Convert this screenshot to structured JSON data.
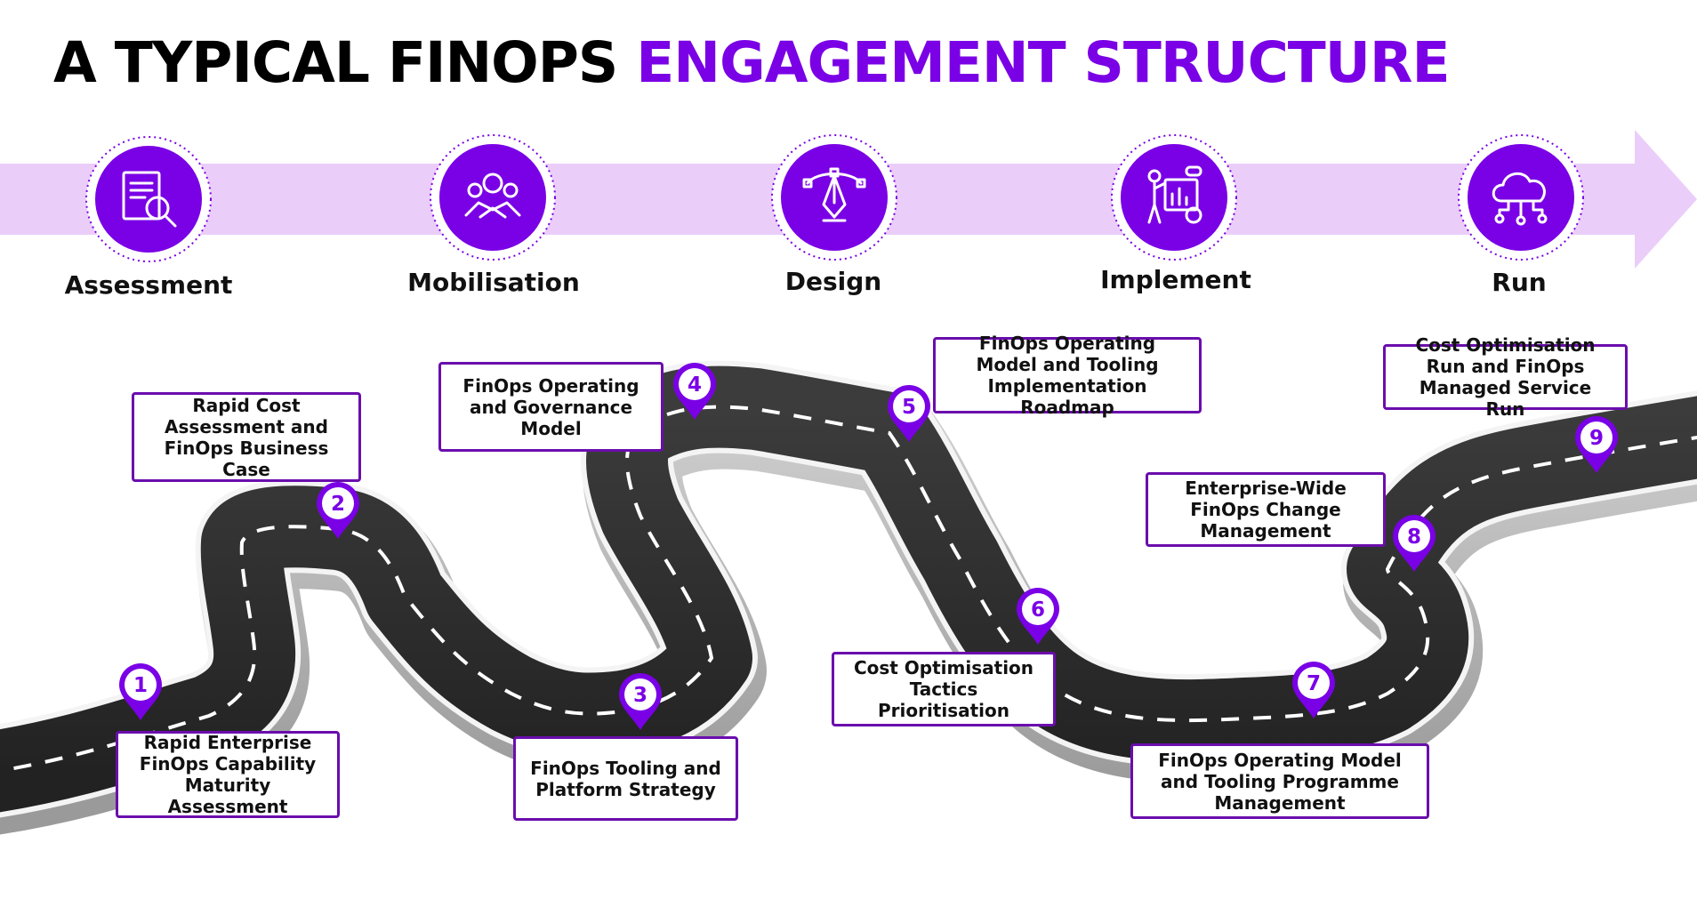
{
  "title": {
    "part1": "A TYPICAL FINOPS",
    "part2": "ENGAGEMENT STRUCTURE"
  },
  "colors": {
    "accent": "#7a00e6",
    "band": "#ebcdfa",
    "road": "#333333",
    "box_border": "#6a0dad"
  },
  "phases": [
    {
      "label": "Assessment",
      "icon": "document-search-icon"
    },
    {
      "label": "Mobilisation",
      "icon": "team-handshake-icon"
    },
    {
      "label": "Design",
      "icon": "pen-tool-icon"
    },
    {
      "label": "Implement",
      "icon": "person-dashboard-icon"
    },
    {
      "label": "Run",
      "icon": "cloud-network-icon"
    }
  ],
  "steps": [
    {
      "number": "1",
      "label": "Rapid Enterprise FinOps Capability Maturity Assessment"
    },
    {
      "number": "2",
      "label": "Rapid Cost Assessment and FinOps Business Case"
    },
    {
      "number": "3",
      "label": "FinOps Tooling and Platform Strategy"
    },
    {
      "number": "4",
      "label": "FinOps Operating and Governance Model"
    },
    {
      "number": "5",
      "label": "FinOps Operating Model and Tooling Implementation Roadmap"
    },
    {
      "number": "6",
      "label": "Cost Optimisation Tactics Prioritisation"
    },
    {
      "number": "7",
      "label": "FinOps Operating Model and Tooling Programme Management"
    },
    {
      "number": "8",
      "label": "Enterprise-Wide FinOps Change Management"
    },
    {
      "number": "9",
      "label": "Cost Optimisation Run and FinOps Managed Service Run"
    }
  ]
}
